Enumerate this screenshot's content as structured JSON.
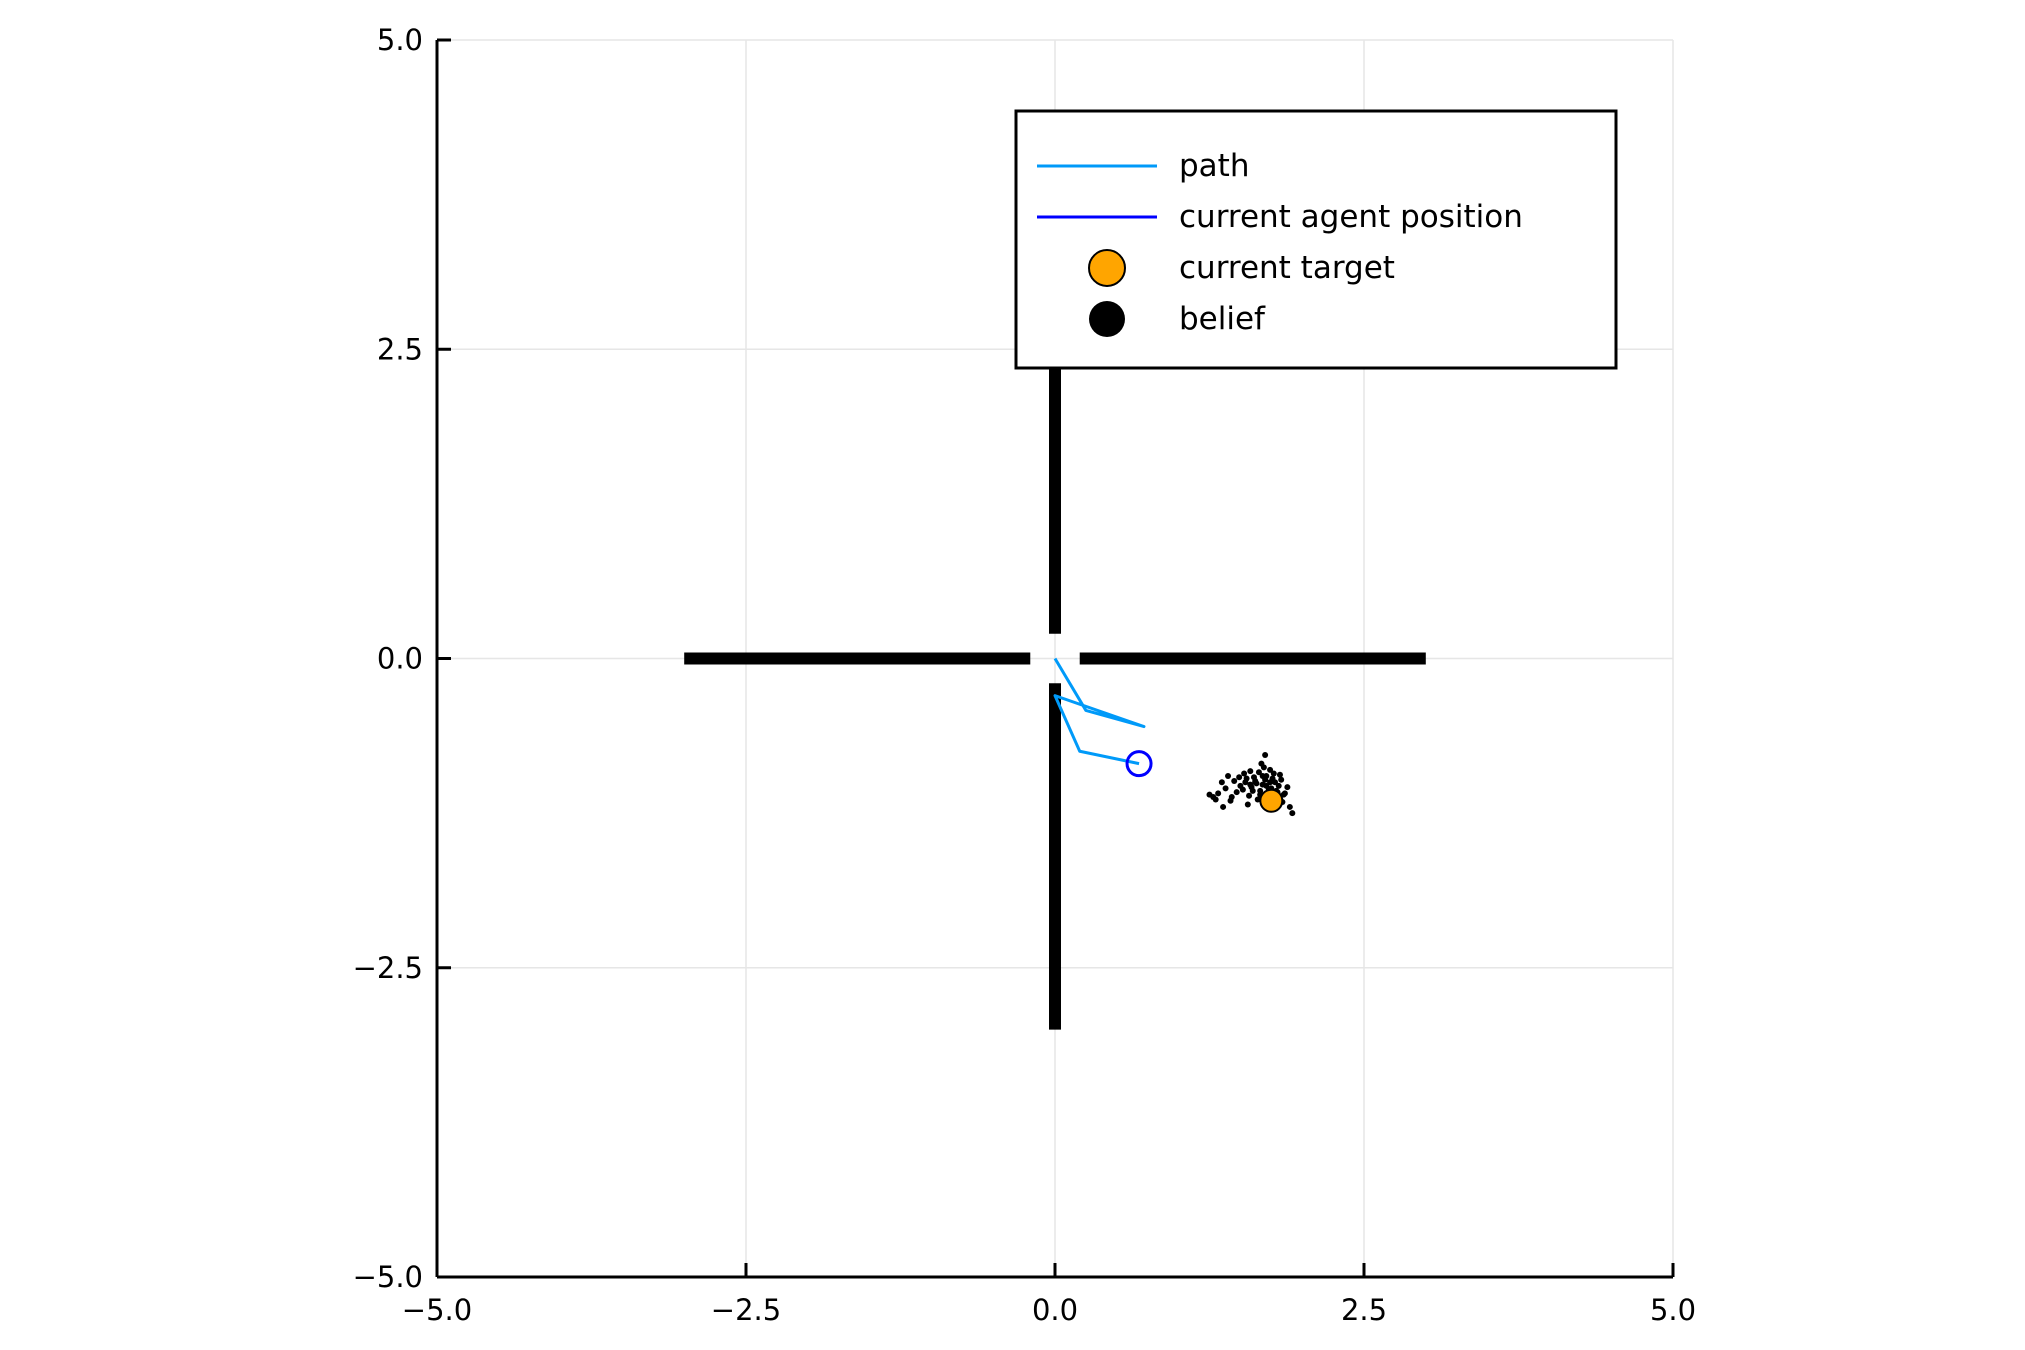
{
  "chart_data": {
    "type": "scatter",
    "title": "",
    "xlabel": "",
    "ylabel": "",
    "xlim": [
      -5,
      5
    ],
    "ylim": [
      -5,
      5
    ],
    "xticks": [
      -5,
      -2.5,
      0,
      2.5,
      5
    ],
    "xtick_labels": [
      "−5.0",
      "−2.5",
      "0.0",
      "2.5",
      "5.0"
    ],
    "yticks": [
      -5,
      -2.5,
      0,
      2.5,
      5
    ],
    "ytick_labels": [
      "−5.0",
      "−2.5",
      "0.0",
      "2.5",
      "5.0"
    ],
    "grid": true,
    "legend_position": "top-right",
    "walls": [
      {
        "x": [
          -3,
          -0.2
        ],
        "y": [
          0,
          0
        ]
      },
      {
        "x": [
          0.2,
          3
        ],
        "y": [
          0,
          0
        ]
      },
      {
        "x": [
          0,
          0
        ],
        "y": [
          0.2,
          3
        ]
      },
      {
        "x": [
          0,
          0
        ],
        "y": [
          -3,
          -0.2
        ]
      }
    ],
    "series": [
      {
        "name": "path",
        "kind": "line",
        "color": "#009af9",
        "x": [
          0.0,
          0.25,
          0.72,
          0.0,
          0.2,
          0.68
        ],
        "y": [
          0.0,
          -0.42,
          -0.55,
          -0.3,
          -0.75,
          -0.85
        ]
      },
      {
        "name": "current agent position",
        "kind": "line",
        "color": "#0000ff",
        "x": [
          0.68
        ],
        "y": [
          -0.85
        ]
      },
      {
        "name": "current target",
        "kind": "scatter",
        "color": "#ffa500",
        "x": [
          1.75
        ],
        "y": [
          -1.15
        ]
      },
      {
        "name": "belief",
        "kind": "scatter",
        "color": "#000000",
        "x": [
          1.62,
          1.7,
          1.75,
          1.68,
          1.58,
          1.8,
          1.72,
          1.55,
          1.65,
          1.78,
          1.85,
          1.6,
          1.5,
          1.45,
          1.38,
          1.32,
          1.28,
          1.42,
          1.52,
          1.66,
          1.74,
          1.82,
          1.88,
          1.63,
          1.57,
          1.71,
          1.79,
          1.69,
          1.61,
          1.53,
          1.47,
          1.35,
          1.3,
          1.25,
          1.4,
          1.67,
          1.76,
          1.84,
          1.9,
          1.73,
          1.59,
          1.64,
          1.81,
          1.77,
          1.86,
          1.56,
          1.49,
          1.43,
          1.36,
          1.7,
          1.74,
          1.68,
          1.62,
          1.92,
          1.66,
          1.58,
          1.54,
          1.83,
          1.79,
          1.71
        ],
        "y": [
          -1.0,
          -0.98,
          -1.05,
          -0.95,
          -1.02,
          -1.08,
          -1.12,
          -0.97,
          -0.92,
          -1.0,
          -1.1,
          -1.07,
          -1.03,
          -0.99,
          -1.05,
          -1.09,
          -1.12,
          -1.15,
          -1.06,
          -1.1,
          -0.9,
          -0.94,
          -1.04,
          -1.01,
          -1.11,
          -1.03,
          -1.13,
          -0.88,
          -0.96,
          -0.93,
          -1.08,
          -1.0,
          -1.14,
          -1.1,
          -0.95,
          -0.85,
          -0.97,
          -1.16,
          -1.2,
          -1.06,
          -1.04,
          -1.14,
          -1.03,
          -0.93,
          -1.09,
          -1.18,
          -0.96,
          -1.12,
          -1.2,
          -0.78,
          -1.0,
          -1.02,
          -0.99,
          -1.25,
          -1.07,
          -0.91,
          -1.0,
          -0.98,
          -1.07,
          -0.95
        ]
      }
    ]
  }
}
